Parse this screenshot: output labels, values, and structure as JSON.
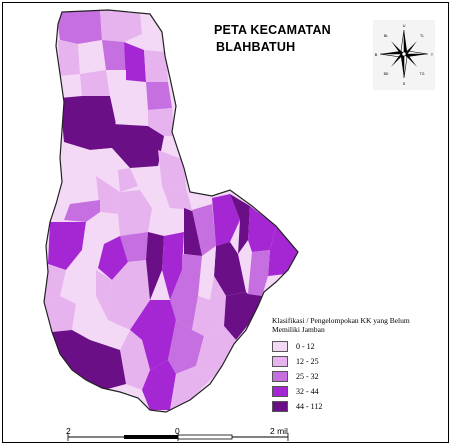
{
  "title": {
    "line1": "PETA KECAMATAN",
    "line2": "BLAHBATUH"
  },
  "legend": {
    "title": "Klasifikasi / Pengelompokan KK yang Belum Memiliki Jamban",
    "classes": [
      {
        "label": "0 - 12",
        "color": "#f3d9f6"
      },
      {
        "label": "12 - 25",
        "color": "#e6b3ef"
      },
      {
        "label": "25 - 32",
        "color": "#c56fe0"
      },
      {
        "label": "32 - 44",
        "color": "#a527d3"
      },
      {
        "label": "44 - 112",
        "color": "#6b0f86"
      }
    ]
  },
  "scale_bar": {
    "left_label": "2",
    "middle_label": "0",
    "right_label": "2 mil"
  },
  "compass": {
    "labels": [
      "U",
      "S",
      "B",
      "T",
      "BL",
      "TL",
      "BD",
      "TG"
    ]
  },
  "colors": {
    "boundary": "#555555",
    "outline": "#222222"
  }
}
